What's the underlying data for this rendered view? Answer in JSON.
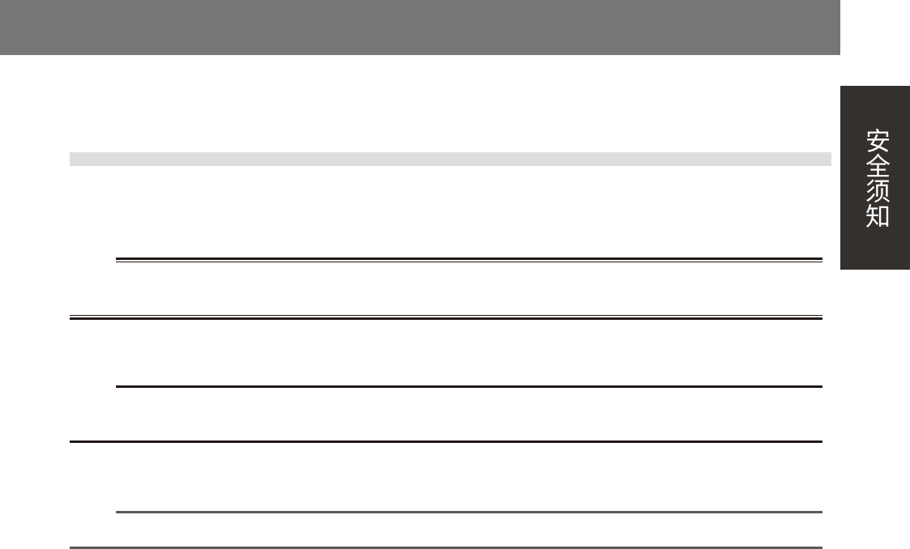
{
  "side_tab": {
    "label": "安全须知"
  },
  "colors": {
    "header": "#767676",
    "band": "#dcdddd",
    "tab": "#33302e",
    "rule": "#231815",
    "rule_grey": "#595959"
  }
}
